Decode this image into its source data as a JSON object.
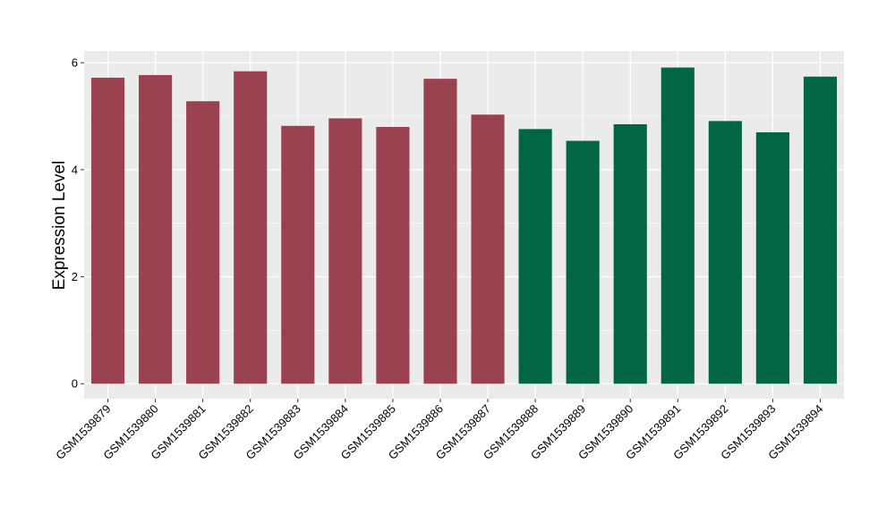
{
  "chart_data": {
    "type": "bar",
    "title": "",
    "xlabel": "",
    "ylabel": "Expression Level",
    "ylim": [
      -0.28,
      6.22
    ],
    "yticks": [
      0,
      2,
      4,
      6
    ],
    "grid": true,
    "categories": [
      "GSM1539879",
      "GSM1539880",
      "GSM1539881",
      "GSM1539882",
      "GSM1539883",
      "GSM1539884",
      "GSM1539885",
      "GSM1539886",
      "GSM1539887",
      "GSM1539888",
      "GSM1539889",
      "GSM1539890",
      "GSM1539891",
      "GSM1539892",
      "GSM1539893",
      "GSM1539894"
    ],
    "values": [
      5.72,
      5.77,
      5.28,
      5.84,
      4.82,
      4.96,
      4.8,
      5.7,
      5.03,
      4.76,
      4.54,
      4.85,
      5.91,
      4.91,
      4.7,
      5.74
    ],
    "group_colors": [
      "#9a4250",
      "#9a4250",
      "#9a4250",
      "#9a4250",
      "#9a4250",
      "#9a4250",
      "#9a4250",
      "#9a4250",
      "#9a4250",
      "#006644",
      "#006644",
      "#006644",
      "#006644",
      "#006644",
      "#006644",
      "#006644"
    ],
    "panel_background": "#ebebeb",
    "gridline_color": "#ffffff"
  }
}
